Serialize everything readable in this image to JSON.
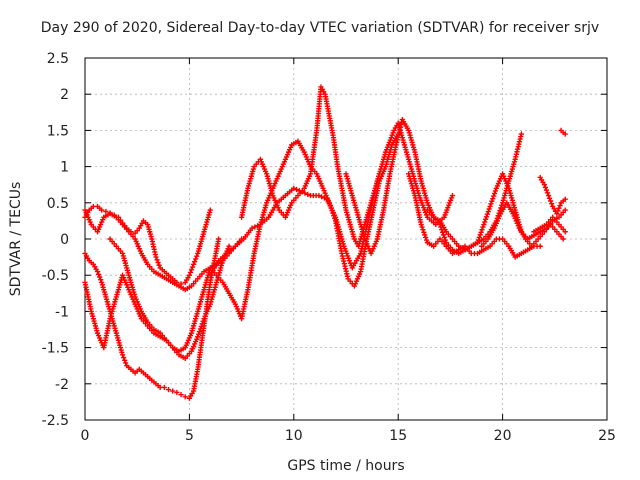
{
  "chart_data": {
    "type": "scatter",
    "title": "Day 290 of 2020, Sidereal Day-to-day VTEC variation (SDTVAR) for receiver srjv",
    "xlabel": "GPS time / hours",
    "ylabel": "SDTVAR / TECUs",
    "xlim": [
      0,
      25
    ],
    "ylim": [
      -2.5,
      2.5
    ],
    "xticks": [
      "0",
      "5",
      "10",
      "15",
      "20",
      "25"
    ],
    "yticks": [
      "2.5",
      "2",
      "1.5",
      "1",
      "0.5",
      "0",
      "-0.5",
      "-1",
      "-1.5",
      "-2",
      "-2.5"
    ],
    "grid": true,
    "marker": "plus",
    "color": "#ff0000",
    "series": [
      {
        "x": [
          0.0,
          0.2,
          0.4,
          0.6,
          0.8,
          1.0,
          1.2,
          1.4,
          1.6,
          1.8,
          2.0,
          2.2,
          2.4,
          2.6,
          2.8,
          3.0,
          3.2,
          3.4,
          3.6,
          3.8,
          4.0,
          4.2,
          4.4,
          4.6,
          4.8,
          5.0,
          5.2,
          5.4,
          5.6,
          5.8,
          6.0
        ],
        "y": [
          0.3,
          0.4,
          0.45,
          0.45,
          0.4,
          0.38,
          0.36,
          0.33,
          0.3,
          0.22,
          0.15,
          0.1,
          0.08,
          0.15,
          0.25,
          0.2,
          0.0,
          -0.25,
          -0.4,
          -0.45,
          -0.5,
          -0.55,
          -0.6,
          -0.62,
          -0.6,
          -0.5,
          -0.35,
          -0.2,
          0.0,
          0.2,
          0.4
        ]
      },
      {
        "x": [
          0.0,
          0.3,
          0.6,
          0.9,
          1.2,
          1.5,
          1.8,
          2.1,
          2.4,
          2.7,
          3.0,
          3.3,
          3.6,
          3.9,
          4.2,
          4.5,
          4.8,
          5.1,
          5.4,
          5.7,
          6.0,
          6.3,
          6.6,
          6.9,
          7.2,
          7.5
        ],
        "y": [
          0.4,
          0.2,
          0.1,
          0.3,
          0.35,
          0.3,
          0.2,
          0.1,
          0.0,
          -0.2,
          -0.35,
          -0.45,
          -0.5,
          -0.55,
          -0.6,
          -0.65,
          -0.7,
          -0.65,
          -0.55,
          -0.45,
          -0.4,
          -0.35,
          -0.3,
          -0.2,
          -0.1,
          0.0
        ]
      },
      {
        "x": [
          0.0,
          0.2,
          0.4,
          0.6,
          0.8,
          1.0,
          1.2,
          1.4,
          1.6,
          1.8,
          2.0,
          2.2,
          2.4,
          2.6,
          2.8,
          3.0,
          3.2,
          3.4,
          3.6,
          3.8,
          4.0,
          4.2,
          4.4,
          4.6,
          4.8,
          5.0,
          5.2,
          5.4,
          5.6,
          5.8,
          6.0,
          6.2,
          6.4
        ],
        "y": [
          -0.2,
          -0.3,
          -0.35,
          -0.45,
          -0.6,
          -0.8,
          -1.0,
          -1.2,
          -1.4,
          -1.6,
          -1.75,
          -1.8,
          -1.85,
          -1.8,
          -1.85,
          -1.9,
          -1.95,
          -2.0,
          -2.05,
          -2.05,
          -2.08,
          -2.1,
          -2.12,
          -2.15,
          -2.18,
          -2.2,
          -2.1,
          -1.8,
          -1.4,
          -1.0,
          -0.6,
          -0.3,
          0.0
        ]
      },
      {
        "x": [
          0.0,
          0.3,
          0.6,
          0.9,
          1.2,
          1.5,
          1.8,
          2.1,
          2.4,
          2.7,
          3.0,
          3.3,
          3.6,
          3.9,
          4.2,
          4.5,
          4.8,
          5.1,
          5.4,
          5.7,
          6.0
        ],
        "y": [
          -0.6,
          -1.0,
          -1.3,
          -1.5,
          -1.1,
          -0.8,
          -0.5,
          -0.7,
          -0.9,
          -1.1,
          -1.2,
          -1.3,
          -1.35,
          -1.4,
          -1.5,
          -1.55,
          -1.5,
          -1.3,
          -1.0,
          -0.7,
          -0.4
        ]
      },
      {
        "x": [
          1.2,
          1.5,
          1.8,
          2.1,
          2.4,
          2.7,
          3.0,
          3.3,
          3.6,
          3.9,
          4.2,
          4.5,
          4.8,
          5.1,
          5.4,
          5.7,
          6.0,
          6.3,
          6.6,
          6.9
        ],
        "y": [
          0.0,
          -0.1,
          -0.2,
          -0.5,
          -0.8,
          -1.0,
          -1.15,
          -1.25,
          -1.3,
          -1.4,
          -1.5,
          -1.6,
          -1.65,
          -1.55,
          -1.35,
          -1.1,
          -0.9,
          -0.6,
          -0.3,
          -0.1
        ]
      },
      {
        "x": [
          6.0,
          6.4,
          6.8,
          7.2,
          7.6,
          8.0,
          8.4,
          8.8,
          9.2,
          9.6,
          10.0,
          10.4,
          10.8,
          11.2,
          11.6,
          12.0,
          12.4,
          12.8,
          13.2,
          13.6,
          14.0,
          14.4,
          14.8,
          15.0,
          15.2,
          15.6,
          16.0,
          16.4,
          16.8,
          17.2,
          17.6
        ],
        "y": [
          -0.5,
          -0.3,
          -0.2,
          -0.1,
          0.0,
          0.15,
          0.2,
          0.3,
          0.5,
          0.6,
          0.7,
          0.65,
          0.6,
          0.6,
          0.55,
          0.3,
          -0.1,
          -0.4,
          -0.2,
          0.3,
          0.8,
          1.2,
          1.5,
          1.6,
          1.4,
          1.0,
          0.6,
          0.3,
          0.2,
          0.3,
          0.6
        ]
      },
      {
        "x": [
          6.0,
          6.3,
          6.6,
          6.9,
          7.2,
          7.5,
          7.8,
          8.1,
          8.4,
          8.7,
          9.0,
          9.3,
          9.6,
          9.9,
          10.2,
          10.5,
          10.8,
          11.1,
          11.4,
          11.7,
          12.0,
          12.3,
          12.6,
          12.9,
          13.2,
          13.5,
          13.8,
          14.1,
          14.4,
          14.7,
          15.0
        ],
        "y": [
          -0.4,
          -0.5,
          -0.6,
          -0.75,
          -0.9,
          -1.1,
          -0.7,
          -0.2,
          0.2,
          0.5,
          0.7,
          0.9,
          1.1,
          1.3,
          1.35,
          1.2,
          1.0,
          0.9,
          0.7,
          0.5,
          0.25,
          -0.2,
          -0.55,
          -0.65,
          -0.45,
          0.0,
          0.4,
          0.8,
          1.0,
          1.3,
          1.45
        ]
      },
      {
        "x": [
          7.5,
          7.8,
          8.1,
          8.4,
          8.7,
          9.0,
          9.3,
          9.6,
          9.9,
          10.2,
          10.5,
          10.8,
          11.1,
          11.3,
          11.5,
          11.7,
          11.9,
          12.1,
          12.3,
          12.5,
          12.7,
          12.9,
          13.1,
          13.3,
          13.5,
          13.7,
          13.9,
          14.1
        ],
        "y": [
          0.3,
          0.7,
          1.0,
          1.1,
          0.9,
          0.6,
          0.4,
          0.3,
          0.5,
          0.6,
          0.7,
          0.9,
          1.5,
          2.1,
          2.0,
          1.7,
          1.4,
          1.0,
          0.7,
          0.4,
          0.2,
          0.0,
          -0.1,
          0.1,
          0.3,
          0.5,
          0.7,
          0.9
        ]
      },
      {
        "x": [
          12.5,
          12.8,
          13.1,
          13.4,
          13.7,
          14.0,
          14.3,
          14.6,
          14.9,
          15.2,
          15.5,
          15.8,
          16.1,
          16.4,
          16.7,
          17.0,
          17.3,
          17.6,
          17.9,
          18.2,
          18.5,
          18.8,
          19.1,
          19.4,
          19.7,
          20.0,
          20.3,
          20.6,
          20.9
        ],
        "y": [
          0.9,
          0.6,
          0.3,
          0.0,
          -0.2,
          0.0,
          0.4,
          0.9,
          1.3,
          1.65,
          1.5,
          1.2,
          0.8,
          0.5,
          0.3,
          0.25,
          0.1,
          0.0,
          -0.1,
          -0.15,
          -0.1,
          -0.05,
          0.0,
          0.1,
          0.25,
          0.5,
          0.8,
          1.1,
          1.45
        ]
      },
      {
        "x": [
          15.5,
          15.8,
          16.1,
          16.4,
          16.7,
          17.0,
          17.3,
          17.6,
          17.9,
          18.2,
          18.5,
          18.8,
          19.1,
          19.4,
          19.7,
          20.0,
          20.3,
          20.6,
          20.9,
          21.2,
          21.5,
          21.8
        ],
        "y": [
          0.9,
          0.6,
          0.2,
          -0.05,
          -0.1,
          0.0,
          -0.1,
          -0.2,
          -0.15,
          -0.1,
          -0.2,
          -0.2,
          -0.15,
          -0.1,
          0.0,
          0.0,
          -0.1,
          -0.25,
          -0.2,
          -0.15,
          -0.1,
          -0.1
        ]
      },
      {
        "x": [
          16.4,
          16.7,
          17.0,
          17.3,
          17.6,
          17.9,
          18.2,
          18.5,
          18.8,
          19.1,
          19.4,
          19.7,
          20.0,
          20.3,
          20.6,
          20.9,
          21.2,
          21.5,
          21.8,
          22.1,
          22.4,
          22.7,
          23.0
        ],
        "y": [
          0.4,
          0.3,
          0.2,
          -0.05,
          -0.15,
          -0.2,
          -0.15,
          -0.1,
          -0.05,
          0.2,
          0.45,
          0.7,
          0.9,
          0.7,
          0.4,
          0.1,
          0.0,
          0.05,
          0.1,
          0.15,
          0.25,
          0.3,
          0.4
        ]
      },
      {
        "x": [
          19.0,
          19.3,
          19.6,
          19.9,
          20.2,
          20.5,
          20.8,
          21.1,
          21.4,
          21.7,
          22.0,
          22.3,
          22.6,
          22.9
        ],
        "y": [
          -0.1,
          0.0,
          0.15,
          0.35,
          0.5,
          0.35,
          0.15,
          0.0,
          -0.1,
          0.0,
          0.1,
          0.2,
          0.1,
          0.0
        ]
      },
      {
        "x": [
          21.8,
          22.0,
          22.2,
          22.4,
          22.6,
          22.8,
          23.0
        ],
        "y": [
          0.85,
          0.75,
          0.6,
          0.45,
          0.35,
          0.5,
          0.55
        ]
      },
      {
        "x": [
          22.8,
          22.9,
          23.0
        ],
        "y": [
          1.5,
          1.47,
          1.45
        ]
      },
      {
        "x": [
          21.5,
          21.8,
          22.1,
          22.4,
          22.7,
          23.0
        ],
        "y": [
          0.1,
          0.15,
          0.2,
          0.3,
          0.2,
          0.1
        ]
      }
    ]
  }
}
